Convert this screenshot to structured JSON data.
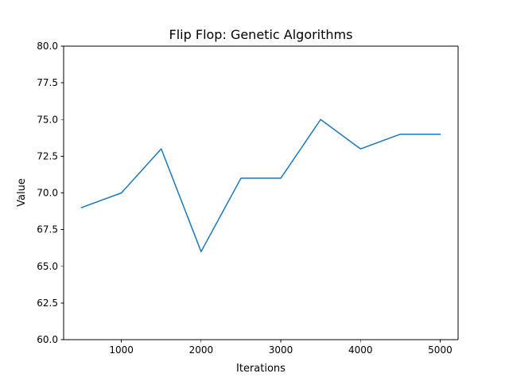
{
  "chart_data": {
    "type": "line",
    "title": "Flip Flop: Genetic Algorithms",
    "xlabel": "Iterations",
    "ylabel": "Value",
    "xlim": [
      275,
      5225
    ],
    "ylim": [
      60.0,
      80.0
    ],
    "grid": false,
    "x_ticks": [
      {
        "value": 1000,
        "label": "1000"
      },
      {
        "value": 2000,
        "label": "2000"
      },
      {
        "value": 3000,
        "label": "3000"
      },
      {
        "value": 4000,
        "label": "4000"
      },
      {
        "value": 5000,
        "label": "5000"
      }
    ],
    "y_ticks": [
      {
        "value": 60.0,
        "label": "60.0"
      },
      {
        "value": 62.5,
        "label": "62.5"
      },
      {
        "value": 65.0,
        "label": "65.0"
      },
      {
        "value": 67.5,
        "label": "67.5"
      },
      {
        "value": 70.0,
        "label": "70.0"
      },
      {
        "value": 72.5,
        "label": "72.5"
      },
      {
        "value": 75.0,
        "label": "75.0"
      },
      {
        "value": 77.5,
        "label": "77.5"
      },
      {
        "value": 80.0,
        "label": "80.0"
      }
    ],
    "series": [
      {
        "color": "#1f77b4",
        "x": [
          500,
          1000,
          1500,
          2000,
          2500,
          3000,
          3500,
          4000,
          4500,
          5000
        ],
        "y": [
          69,
          70,
          73,
          66,
          71,
          71,
          75,
          73,
          74,
          74
        ]
      }
    ]
  }
}
